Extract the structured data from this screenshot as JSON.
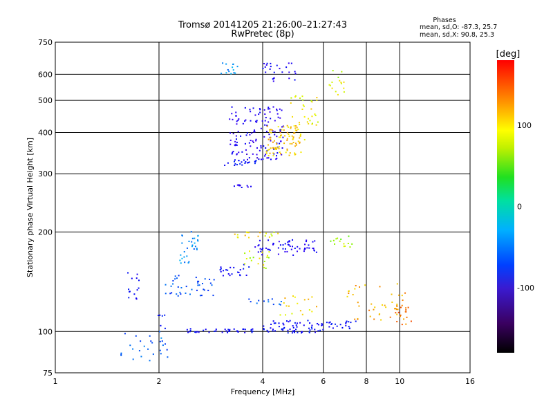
{
  "chart_data": {
    "type": "scatter",
    "title": "Tromsø 20141205 21:26:00–21:27:43",
    "subtitle": "RwPretec (8p)",
    "xlabel": "Frequency [MHz]",
    "ylabel": "Stationary phase Virtual Height [km]",
    "x_scale": "log",
    "y_scale": "log",
    "xlim": [
      1,
      16
    ],
    "ylim": [
      75,
      750
    ],
    "x_ticks": [
      1,
      2,
      4,
      6,
      8,
      10,
      16
    ],
    "y_ticks": [
      75,
      100,
      200,
      300,
      400,
      500,
      600,
      750
    ],
    "x_gridlines": [
      2,
      4,
      6,
      8,
      10
    ],
    "y_gridlines": [
      100,
      200,
      300,
      400,
      500,
      600
    ],
    "grid": true,
    "phase_stats": {
      "header": "Phases",
      "line1": "mean, sd,O:  -87.3, 25.7",
      "line2": "mean, sd,X:  90.8, 25.3"
    },
    "colorbar": {
      "label": "[deg]",
      "ticks": [
        100,
        0,
        -100
      ],
      "range": [
        -180,
        180
      ],
      "colormap": "rainbow (black → purple → blue → cyan → green → yellow → orange → red)"
    },
    "clusters": [
      {
        "x": [
          1.6,
          1.75
        ],
        "y": [
          120,
          155
        ],
        "phase": -110,
        "n": 14
      },
      {
        "x": [
          1.55,
          2.15
        ],
        "y": [
          80,
          100
        ],
        "phase": -60,
        "n": 28
      },
      {
        "x": [
          1.95,
          2.15
        ],
        "y": [
          100,
          118
        ],
        "phase": -100,
        "n": 6
      },
      {
        "x": [
          2.0,
          2.9
        ],
        "y": [
          128,
          148
        ],
        "phase": -70,
        "n": 40
      },
      {
        "x": [
          2.3,
          2.6
        ],
        "y": [
          160,
          205
        ],
        "phase": -45,
        "n": 30
      },
      {
        "x": [
          2.4,
          6.0
        ],
        "y": [
          99,
          102
        ],
        "phase": -105,
        "n": 70
      },
      {
        "x": [
          4.0,
          7.5
        ],
        "y": [
          102,
          108
        ],
        "phase": -110,
        "n": 55
      },
      {
        "x": [
          3.6,
          4.6
        ],
        "y": [
          120,
          126
        ],
        "phase": -55,
        "n": 12
      },
      {
        "x": [
          4.5,
          6.0
        ],
        "y": [
          112,
          130
        ],
        "phase": 105,
        "n": 18
      },
      {
        "x": [
          3.0,
          3.7
        ],
        "y": [
          145,
          160
        ],
        "phase": -110,
        "n": 22
      },
      {
        "x": [
          3.5,
          4.2
        ],
        "y": [
          155,
          175
        ],
        "phase": 85,
        "n": 18
      },
      {
        "x": [
          3.8,
          5.8
        ],
        "y": [
          170,
          190
        ],
        "phase": -120,
        "n": 60
      },
      {
        "x": [
          3.3,
          4.5
        ],
        "y": [
          192,
          200
        ],
        "phase": 100,
        "n": 18
      },
      {
        "x": [
          6.3,
          7.3
        ],
        "y": [
          180,
          195
        ],
        "phase": 70,
        "n": 14
      },
      {
        "x": [
          7.0,
          10.5
        ],
        "y": [
          108,
          140
        ],
        "phase": 120,
        "n": 40
      },
      {
        "x": [
          9.6,
          10.8
        ],
        "y": [
          105,
          120
        ],
        "phase": 140,
        "n": 20
      },
      {
        "x": [
          3.3,
          3.7
        ],
        "y": [
          270,
          278
        ],
        "phase": -130,
        "n": 10
      },
      {
        "x": [
          3.1,
          4.0
        ],
        "y": [
          318,
          330
        ],
        "phase": -100,
        "n": 22
      },
      {
        "x": [
          3.2,
          4.6
        ],
        "y": [
          330,
          480
        ],
        "phase": -125,
        "n": 140
      },
      {
        "x": [
          4.1,
          5.3
        ],
        "y": [
          340,
          420
        ],
        "phase": 110,
        "n": 90
      },
      {
        "x": [
          4.8,
          5.8
        ],
        "y": [
          420,
          520
        ],
        "phase": 95,
        "n": 30
      },
      {
        "x": [
          3.0,
          3.4
        ],
        "y": [
          600,
          650
        ],
        "phase": -45,
        "n": 14
      },
      {
        "x": [
          4.0,
          5.0
        ],
        "y": [
          560,
          650
        ],
        "phase": -120,
        "n": 25
      },
      {
        "x": [
          6.2,
          6.9
        ],
        "y": [
          520,
          620
        ],
        "phase": 85,
        "n": 15
      }
    ]
  }
}
